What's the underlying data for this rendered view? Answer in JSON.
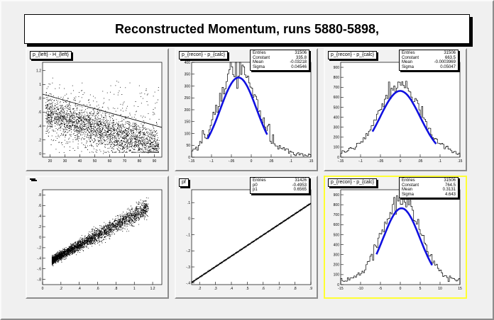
{
  "title": "Reconstructed Momentum, runs 5880-5898,",
  "colors": {
    "fit": "#1010e0",
    "hist": "#000000",
    "selected_border": "#ffff33"
  },
  "pads": [
    {
      "id": "p1",
      "hist_title": "p_{left} - H_{left}",
      "stats": null
    },
    {
      "id": "p2",
      "hist_title": "p_{recon} - p_{calc}",
      "stats": [
        [
          "Entries",
          "31506"
        ],
        [
          "Constant",
          "335.8"
        ],
        [
          "Mean",
          "-0.03218"
        ],
        [
          "Sigma",
          "0.04546"
        ]
      ]
    },
    {
      "id": "p3",
      "hist_title": "p_{recon} - p_{calc}",
      "stats": [
        [
          "Entries",
          "31506"
        ],
        [
          "Constant",
          "663.5"
        ],
        [
          "Mean",
          "-0.0003969"
        ],
        [
          "Sigma",
          "0.05047"
        ]
      ]
    },
    {
      "id": "p4",
      "hist_title": "",
      "stats": null
    },
    {
      "id": "p5",
      "hist_title": "pf",
      "stats": [
        [
          "Entries",
          "31426"
        ],
        [
          "p0",
          "-0.4953"
        ],
        [
          "p1",
          "0.6565"
        ]
      ]
    },
    {
      "id": "p6",
      "hist_title": "p_{recon} - p_{calc}",
      "stats": [
        [
          "Entries",
          "31506"
        ],
        [
          "Constant",
          "764.5"
        ],
        [
          "Mean",
          "0.3131"
        ],
        [
          "Sigma",
          "4.643"
        ]
      ]
    }
  ],
  "chart_data": [
    {
      "type": "scatter",
      "title": "p_{left} - H_{left}",
      "xlim": [
        15,
        95
      ],
      "ylim": [
        -0.05,
        1.32
      ],
      "xticks": [
        20,
        30,
        40,
        50,
        60,
        70,
        80,
        90
      ],
      "yticks": [
        0,
        0.2,
        0.4,
        0.6,
        0.8,
        1,
        1.2
      ],
      "fit_line": {
        "x": [
          15,
          95
        ],
        "y": [
          0.86,
          0.38
        ]
      }
    },
    {
      "type": "bar",
      "title": "p_{recon} - p_{calc}",
      "xlim": [
        -0.15,
        0.15
      ],
      "ylim": [
        0,
        400
      ],
      "xticks": [
        -0.15,
        -0.1,
        -0.05,
        0,
        0.05,
        0.1,
        0.15
      ],
      "yticks": [
        0,
        50,
        100,
        150,
        200,
        250,
        300,
        350,
        400
      ],
      "fit": {
        "constant": 335.8,
        "mean": -0.03218,
        "sigma": 0.04546,
        "range": [
          -0.11,
          0.04
        ]
      }
    },
    {
      "type": "bar",
      "title": "p_{recon} - p_{calc}",
      "xlim": [
        -0.15,
        0.15
      ],
      "ylim": [
        0,
        950
      ],
      "xticks": [
        -0.15,
        -0.1,
        -0.05,
        0,
        0.05,
        0.1,
        0.15
      ],
      "yticks": [
        0,
        100,
        200,
        300,
        400,
        500,
        600,
        700,
        800,
        900
      ],
      "fit": {
        "constant": 663.5,
        "mean": -0.0003969,
        "sigma": 0.05047,
        "range": [
          -0.07,
          0.09
        ]
      }
    },
    {
      "type": "scatter",
      "title": "",
      "xlim": [
        0,
        1.3
      ],
      "ylim": [
        -0.9,
        0.9
      ],
      "xticks": [
        0,
        0.2,
        0.4,
        0.6,
        0.8,
        1,
        1.2
      ],
      "yticks": [
        -0.8,
        -0.6,
        -0.4,
        -0.2,
        0,
        0.2,
        0.4,
        0.6,
        0.8
      ]
    },
    {
      "type": "line",
      "title": "pf",
      "xlim": [
        0.15,
        0.9
      ],
      "ylim": [
        -0.41,
        0.18
      ],
      "xticks": [
        0.2,
        0.3,
        0.4,
        0.5,
        0.6,
        0.7,
        0.8,
        0.9
      ],
      "yticks": [
        -0.4,
        -0.3,
        -0.2,
        -0.1,
        0,
        0.1
      ],
      "fit": {
        "p0": -0.4953,
        "p1": 0.6565
      }
    },
    {
      "type": "bar",
      "title": "p_{recon} - p_{calc}",
      "xlim": [
        -15,
        15
      ],
      "ylim": [
        0,
        950
      ],
      "xticks": [
        -15,
        -10,
        -5,
        0,
        5,
        10,
        15
      ],
      "yticks": [
        0,
        100,
        200,
        300,
        400,
        500,
        600,
        700,
        800,
        900
      ],
      "fit": {
        "constant": 764.5,
        "mean": 0.3131,
        "sigma": 4.643,
        "range": [
          -6,
          8
        ]
      }
    }
  ]
}
